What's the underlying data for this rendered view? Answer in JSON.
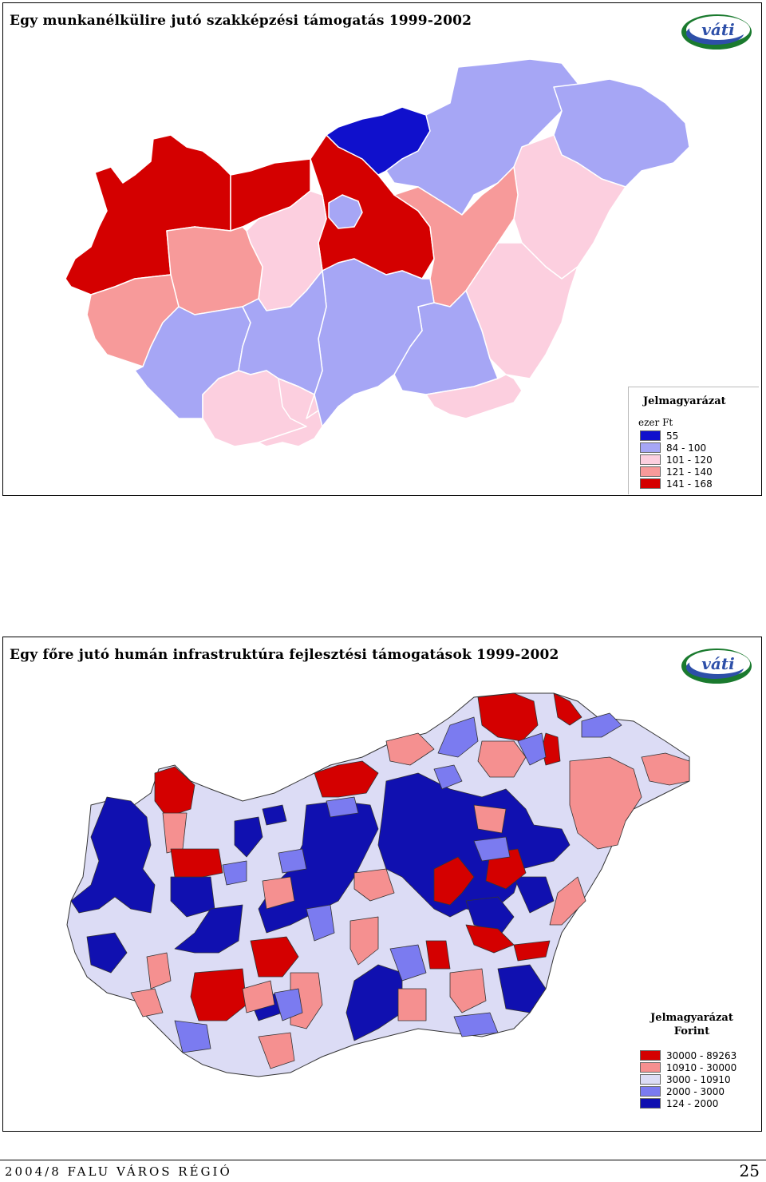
{
  "map1": {
    "title": "Egy munkanélkülire jutó szakképzési támogatás 1999-2002",
    "logo_text": "váti",
    "legend": {
      "title": "Jelmagyarázat",
      "unit": "ezer Ft",
      "items": [
        {
          "label": "55",
          "color": "#1010cc"
        },
        {
          "label": "84 - 100",
          "color": "#a6a6f5"
        },
        {
          "label": "101 - 120",
          "color": "#fccfdf"
        },
        {
          "label": "121 - 140",
          "color": "#f79a9a"
        },
        {
          "label": "141 - 168",
          "color": "#d40000"
        }
      ]
    }
  },
  "map2": {
    "title": "Egy főre jutó humán infrastruktúra fejlesztési támogatások 1999-2002",
    "logo_text": "váti",
    "legend": {
      "title": "Jelmagyarázat",
      "unit": "Forint",
      "items": [
        {
          "label": "30000 - 89263",
          "color": "#d40000"
        },
        {
          "label": "10910 - 30000",
          "color": "#f59090"
        },
        {
          "label": "3000 - 10910",
          "color": "#dcdcf5"
        },
        {
          "label": "2000 - 3000",
          "color": "#7b7bf0"
        },
        {
          "label": "124 - 2000",
          "color": "#1010b0"
        }
      ]
    }
  },
  "footer": {
    "left": "2004/8 FALU VÁROS RÉGIÓ",
    "page_number": "25"
  }
}
